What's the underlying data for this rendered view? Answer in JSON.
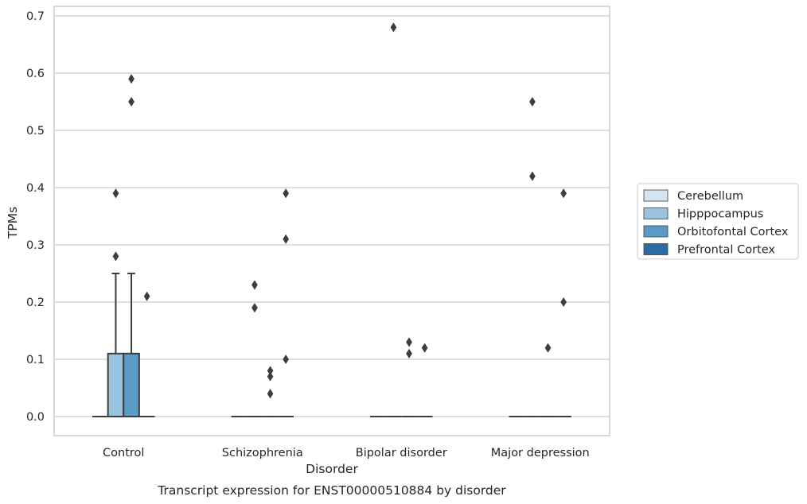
{
  "chart_data": {
    "type": "box",
    "categories": [
      "Control",
      "Schizophrenia",
      "Bipolar disorder",
      "Major depression"
    ],
    "xlabel": "Disorder",
    "ylabel": "TPMs",
    "caption": "Transcript expression for ENST00000510884 by disorder",
    "ylim": [
      -0.033,
      0.716
    ],
    "yticks": [
      "0.0",
      "0.1",
      "0.2",
      "0.3",
      "0.4",
      "0.5",
      "0.6",
      "0.7"
    ],
    "ytick_values": [
      0,
      0.1,
      0.2,
      0.3,
      0.4,
      0.5,
      0.6,
      0.7
    ],
    "grid": true,
    "legend_position": "right",
    "series": [
      {
        "name": "Cerebellum",
        "color": "#d3e4f2",
        "boxes": [
          {
            "q1": 0,
            "median": 0,
            "q3": 0,
            "whisker_low": 0,
            "whisker_high": 0,
            "outliers": []
          },
          {
            "q1": 0,
            "median": 0,
            "q3": 0,
            "whisker_low": 0,
            "whisker_high": 0,
            "outliers": []
          },
          {
            "q1": 0,
            "median": 0,
            "q3": 0,
            "whisker_low": 0,
            "whisker_high": 0,
            "outliers": []
          },
          {
            "q1": 0,
            "median": 0,
            "q3": 0,
            "whisker_low": 0,
            "whisker_high": 0,
            "outliers": []
          }
        ]
      },
      {
        "name": "Hipppocampus",
        "color": "#9ac4de",
        "boxes": [
          {
            "q1": 0,
            "median": 0,
            "q3": 0.11,
            "whisker_low": 0,
            "whisker_high": 0.25,
            "outliers": [
              0.39,
              0.28
            ]
          },
          {
            "q1": 0,
            "median": 0,
            "q3": 0,
            "whisker_low": 0,
            "whisker_high": 0,
            "outliers": [
              0.23,
              0.19
            ]
          },
          {
            "q1": 0,
            "median": 0,
            "q3": 0,
            "whisker_low": 0,
            "whisker_high": 0,
            "outliers": [
              0.68
            ]
          },
          {
            "q1": 0,
            "median": 0,
            "q3": 0,
            "whisker_low": 0,
            "whisker_high": 0,
            "outliers": [
              0.55,
              0.42
            ]
          }
        ]
      },
      {
        "name": "Orbitofontal Cortex",
        "color": "#5a9bc8",
        "boxes": [
          {
            "q1": 0,
            "median": 0,
            "q3": 0.11,
            "whisker_low": 0,
            "whisker_high": 0.25,
            "outliers": [
              0.59,
              0.55
            ]
          },
          {
            "q1": 0,
            "median": 0,
            "q3": 0,
            "whisker_low": 0,
            "whisker_high": 0,
            "outliers": [
              0.08,
              0.07,
              0.04
            ]
          },
          {
            "q1": 0,
            "median": 0,
            "q3": 0,
            "whisker_low": 0,
            "whisker_high": 0,
            "outliers": [
              0.13,
              0.11
            ]
          },
          {
            "q1": 0,
            "median": 0,
            "q3": 0,
            "whisker_low": 0,
            "whisker_high": 0,
            "outliers": [
              0.12
            ]
          }
        ]
      },
      {
        "name": "Prefrontal Cortex",
        "color": "#2b6ba6",
        "boxes": [
          {
            "q1": 0,
            "median": 0,
            "q3": 0,
            "whisker_low": 0,
            "whisker_high": 0,
            "outliers": [
              0.21
            ]
          },
          {
            "q1": 0,
            "median": 0,
            "q3": 0,
            "whisker_low": 0,
            "whisker_high": 0,
            "outliers": [
              0.39,
              0.31,
              0.1
            ]
          },
          {
            "q1": 0,
            "median": 0,
            "q3": 0,
            "whisker_low": 0,
            "whisker_high": 0,
            "outliers": [
              0.12
            ]
          },
          {
            "q1": 0,
            "median": 0,
            "q3": 0,
            "whisker_low": 0,
            "whisker_high": 0,
            "outliers": [
              0.39,
              0.2
            ]
          }
        ]
      }
    ]
  }
}
